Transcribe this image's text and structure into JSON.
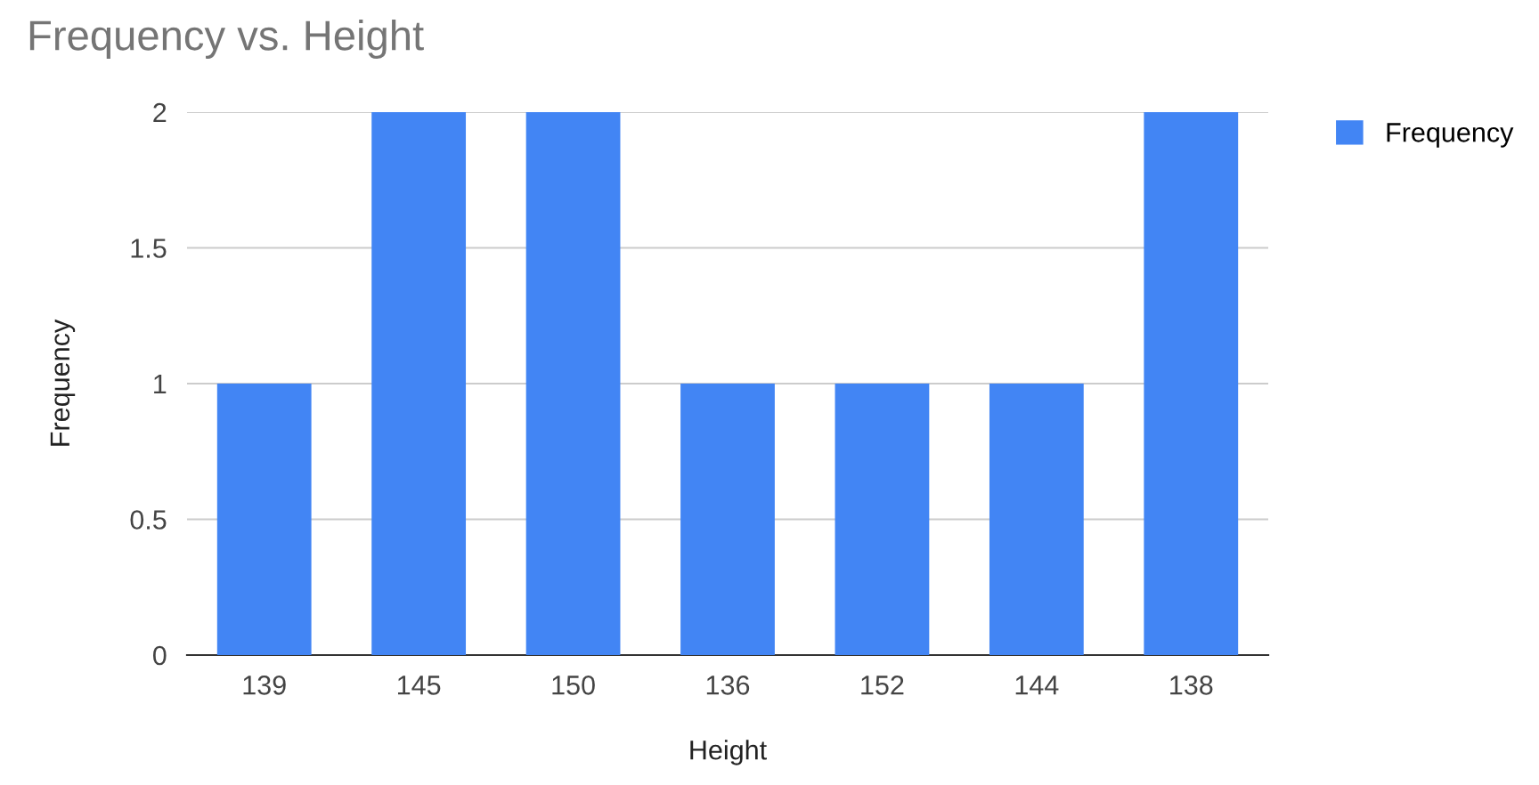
{
  "chart_data": {
    "type": "bar",
    "title": "Frequency vs. Height",
    "xlabel": "Height",
    "ylabel": "Frequency",
    "categories": [
      "139",
      "145",
      "150",
      "136",
      "152",
      "144",
      "138"
    ],
    "series": [
      {
        "name": "Frequency",
        "color": "#4285f4",
        "values": [
          1,
          2,
          2,
          1,
          1,
          1,
          2
        ]
      }
    ],
    "ylim": [
      0,
      2
    ],
    "yticks": [
      0,
      0.5,
      1,
      1.5,
      2
    ],
    "grid": "y",
    "legend": "top right"
  }
}
